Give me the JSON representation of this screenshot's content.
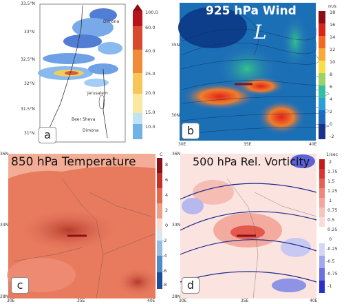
{
  "panel_a": {
    "label": "a",
    "lat_ticks": [
      "33.5°N",
      "33°N",
      "32.5°N",
      "32°N",
      "31.5°N",
      "31°N"
    ],
    "cities": [
      "Dimona",
      "Jerusalem",
      "Beer Sheva",
      "Dimona"
    ],
    "colorbar_ticks": [
      "100.0",
      "60.0",
      "40.0",
      "25.0",
      "20.0",
      "15.0",
      "10.0"
    ]
  },
  "panel_b": {
    "label": "b",
    "title": "925 hPa Wind",
    "low_marker": "L",
    "unit": "m/s",
    "colorbar_ticks": [
      "18",
      "16",
      "14",
      "12",
      "10",
      "8",
      "6",
      "4",
      "2",
      "0",
      "-2"
    ],
    "lat_ticks": [
      "35N",
      "30N"
    ],
    "lon_ticks": [
      "30E",
      "35E",
      "40E"
    ]
  },
  "panel_c": {
    "label": "c",
    "title": "850 hPa Temperature",
    "unit": "C",
    "colorbar_ticks": [
      "8",
      "6",
      "4",
      "2",
      "0",
      "-2",
      "-4",
      "-6",
      "-8"
    ],
    "lat_ticks": [
      "36N",
      "33N",
      "28N"
    ],
    "lon_ticks": [
      "30E",
      "35E",
      "40E"
    ]
  },
  "panel_d": {
    "label": "d",
    "title": "500 hPa Rel. Vorticity",
    "unit": "1/sec",
    "colorbar_ticks": [
      "2",
      "1.75",
      "1.5",
      "1.25",
      "1",
      "0.75",
      "0.5",
      "0.25",
      "0",
      "-0.25",
      "-0.5",
      "-0.75",
      "-1"
    ],
    "lat_ticks": [
      "36N",
      "33N",
      "28N"
    ],
    "lon_ticks": [
      "30E",
      "35E",
      "40E"
    ]
  },
  "colors": {
    "red_bar": "#b0141a",
    "temp_fill": "#e87a5d",
    "wind_bg": "#1b6fb5",
    "vort_bg": "#fbe3df"
  }
}
